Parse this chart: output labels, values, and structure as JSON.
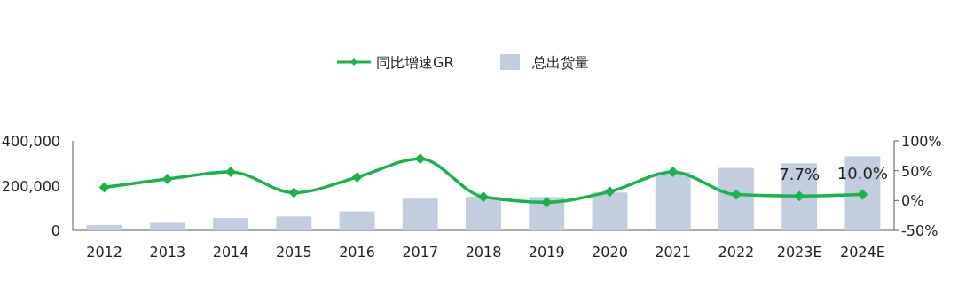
{
  "chart_data": {
    "type": "bar",
    "categories": [
      "2012",
      "2013",
      "2014",
      "2015",
      "2016",
      "2017",
      "2018",
      "2019",
      "2020",
      "2021",
      "2022",
      "2023E",
      "2024E"
    ],
    "series": [
      {
        "name": "同比增速GR",
        "type": "line",
        "axis": "y2",
        "color": "#1ab34d",
        "marker": "diamond",
        "values": [
          22,
          36,
          48,
          13,
          39,
          70,
          6,
          -3,
          15,
          48,
          10,
          7.7,
          10.0
        ],
        "value_labels": [
          null,
          null,
          null,
          null,
          null,
          null,
          null,
          null,
          null,
          null,
          null,
          "7.7%",
          "10.0%"
        ]
      },
      {
        "name": "总出货量",
        "color": "#c3cde0",
        "values": [
          24000,
          34000,
          55000,
          62000,
          85000,
          142000,
          151000,
          149000,
          169000,
          260000,
          279000,
          300000,
          331000
        ]
      }
    ],
    "ylim": [
      0,
      400000
    ],
    "yticks": [
      0,
      {
        "value": 200000,
        "label": "200,000"
      },
      {
        "value": 400000,
        "label": "400,000"
      }
    ],
    "y2lim": [
      -50,
      100
    ],
    "y2ticks": [
      {
        "value": -50,
        "label": "-50%"
      },
      {
        "value": 0,
        "label": "0%"
      },
      {
        "value": 50,
        "label": "50%"
      },
      {
        "value": 100,
        "label": "100%"
      }
    ],
    "legend": "top"
  }
}
